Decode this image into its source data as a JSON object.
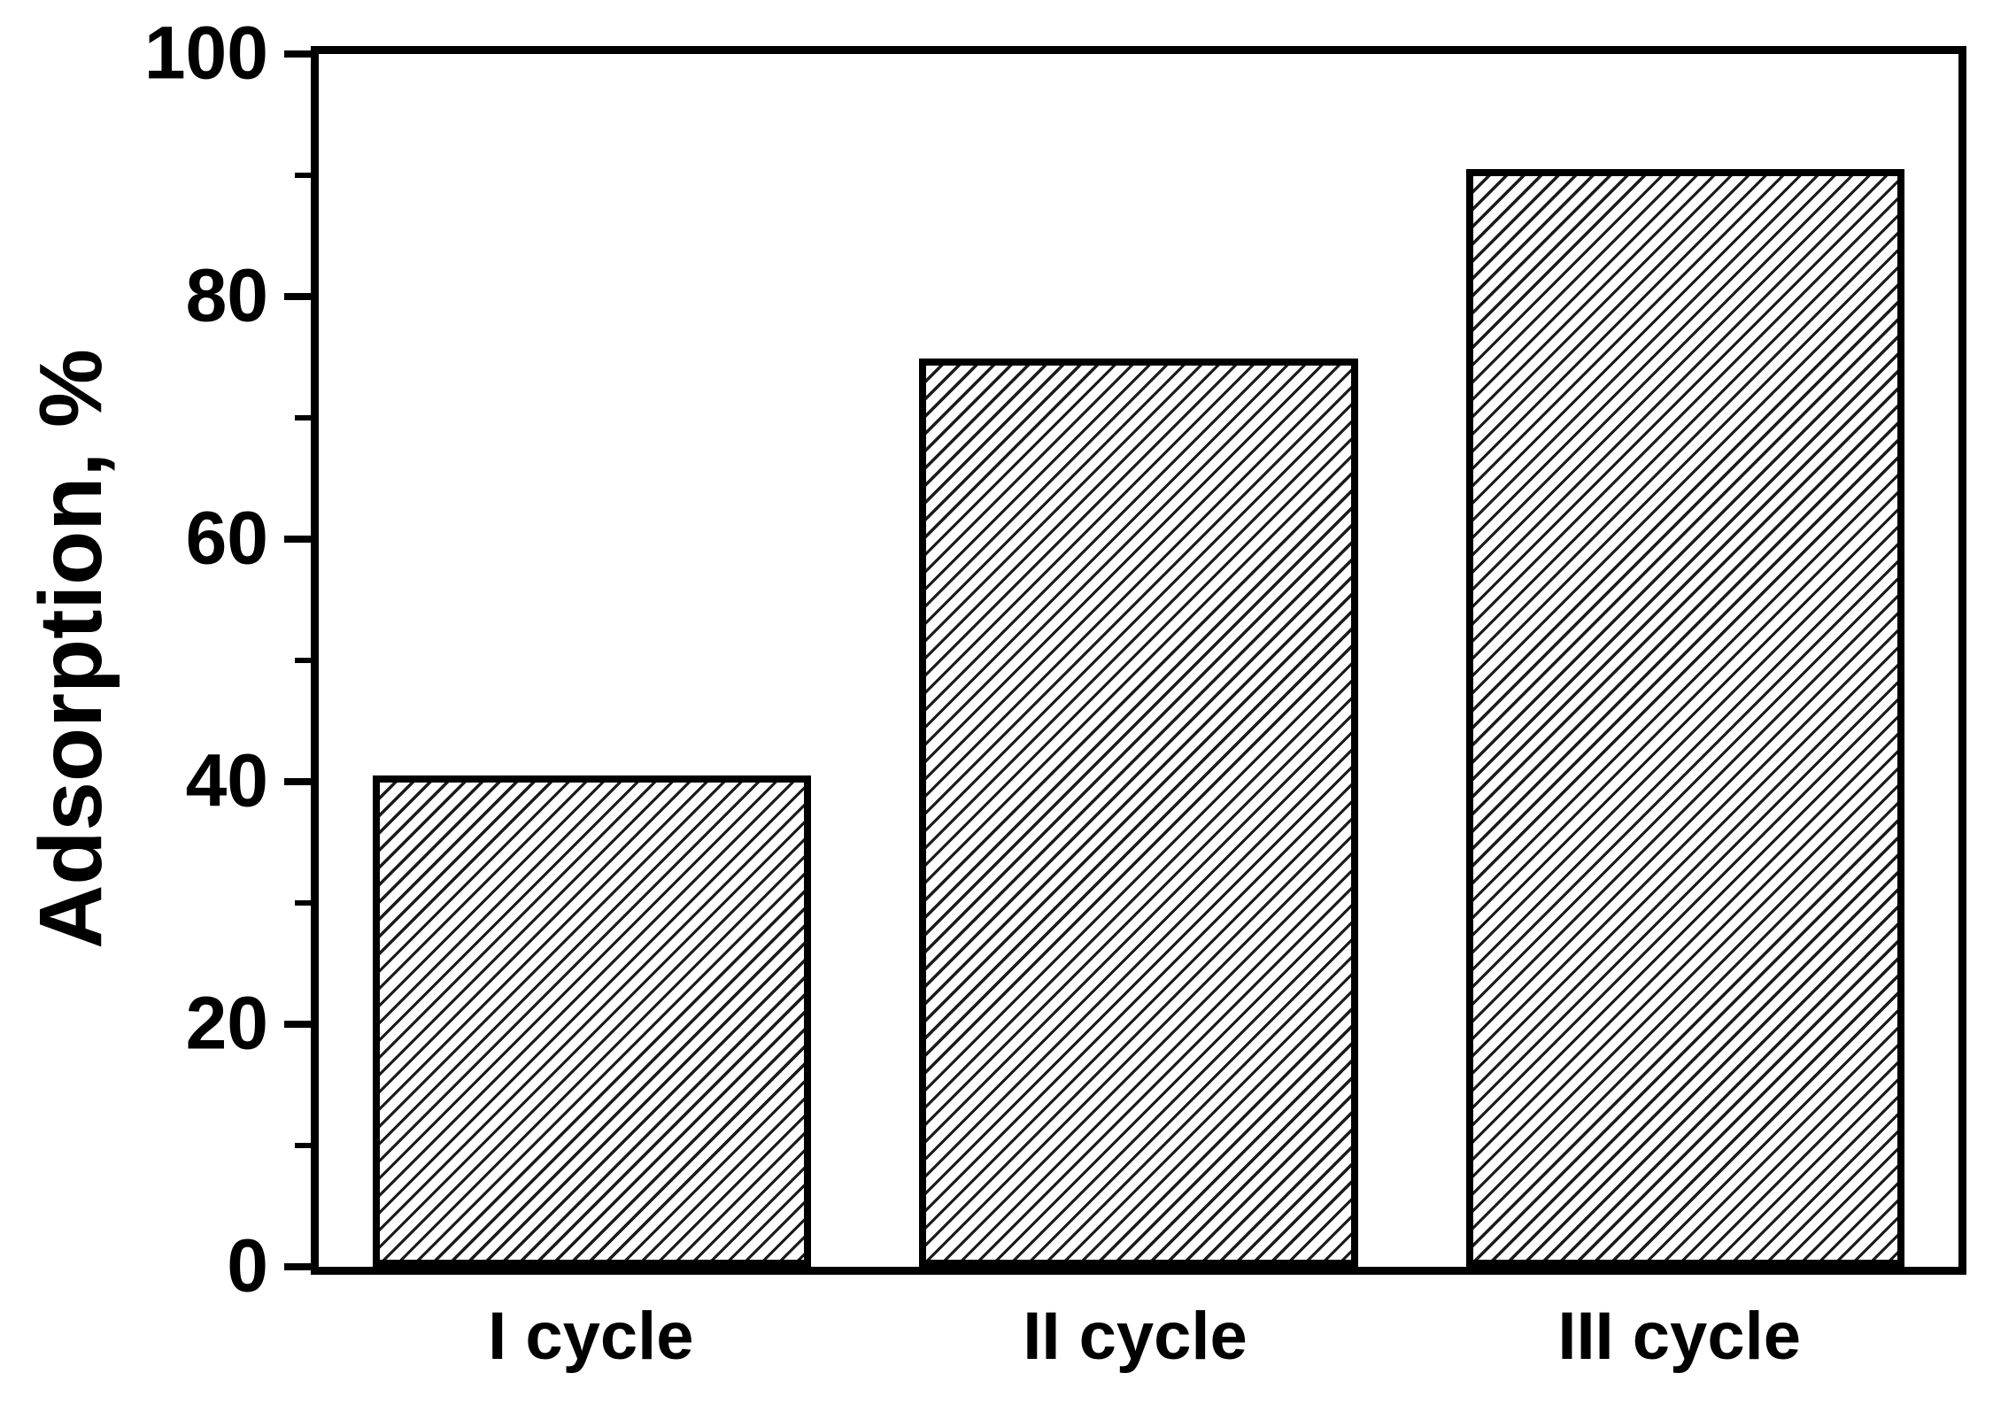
{
  "figure": {
    "background": "#ffffff",
    "axis_color": "#000000",
    "text_color": "#000000"
  },
  "chart_data": {
    "type": "bar",
    "title": "",
    "categories": [
      "I cycle",
      "II cycle",
      "III cycle"
    ],
    "values": [
      40.5,
      74.9,
      90.5
    ],
    "xlabel": "",
    "ylabel": "Adsorption, %",
    "ylim": [
      0,
      100
    ],
    "yticks_major": [
      0,
      20,
      40,
      60,
      80,
      100
    ],
    "yticks_minor": [
      10,
      30,
      50,
      70,
      90
    ],
    "grid": false,
    "legend": false,
    "bar_style": {
      "fill": "#ffffff",
      "hatch": "forward-diagonal",
      "hatch_color": "#1b1b1b",
      "border_color": "#000000"
    }
  }
}
